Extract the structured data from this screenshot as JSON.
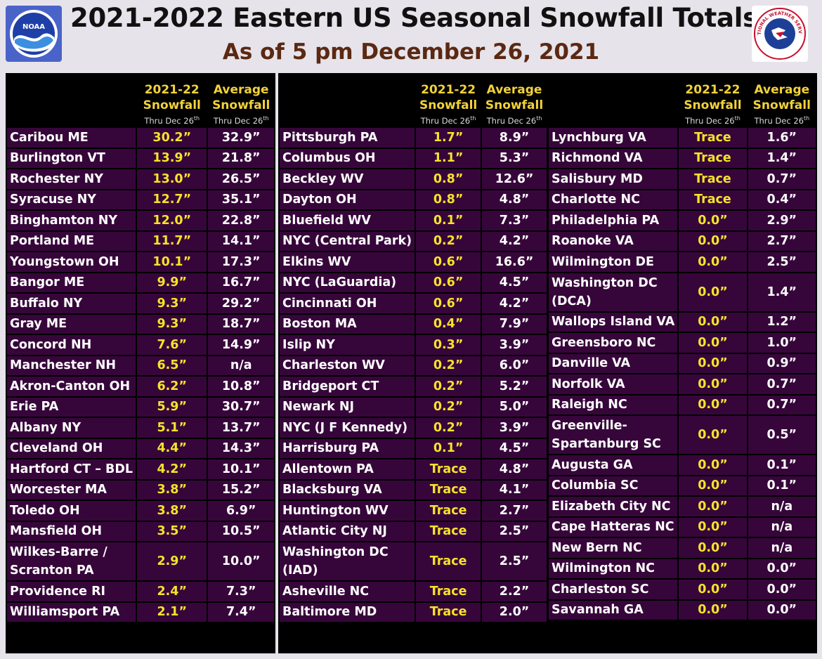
{
  "title": "2021-2022 Eastern US Seasonal Snowfall Totals",
  "subtitle": "As of 5 pm December 26, 2021",
  "logos": {
    "left": "NOAA",
    "right": "NATIONAL WEATHER SERVICE"
  },
  "header": {
    "line1_a": "2021-22",
    "line1_b": "Average",
    "line2": "Snowfall",
    "line3": "Thru Dec 26",
    "line3_sup": "th"
  },
  "columns": [
    {
      "rows": [
        {
          "city": "Caribou ME",
          "snow": "30.2”",
          "avg": "32.9”"
        },
        {
          "city": "Burlington VT",
          "snow": "13.9”",
          "avg": "21.8”"
        },
        {
          "city": "Rochester NY",
          "snow": "13.0”",
          "avg": "26.5”"
        },
        {
          "city": "Syracuse NY",
          "snow": "12.7”",
          "avg": "35.1”"
        },
        {
          "city": "Binghamton NY",
          "snow": "12.0”",
          "avg": "22.8”"
        },
        {
          "city": "Portland ME",
          "snow": "11.7”",
          "avg": "14.1”"
        },
        {
          "city": "Youngstown OH",
          "snow": "10.1”",
          "avg": "17.3”"
        },
        {
          "city": "Bangor ME",
          "snow": "9.9”",
          "avg": "16.7”"
        },
        {
          "city": "Buffalo NY",
          "snow": "9.3”",
          "avg": "29.2”"
        },
        {
          "city": "Gray ME",
          "snow": "9.3”",
          "avg": "18.7”"
        },
        {
          "city": "Concord NH",
          "snow": "7.6”",
          "avg": "14.9”"
        },
        {
          "city": "Manchester NH",
          "snow": "6.5”",
          "avg": "n/a"
        },
        {
          "city": "Akron-Canton OH",
          "snow": "6.2”",
          "avg": "10.8”"
        },
        {
          "city": "Erie PA",
          "snow": "5.9”",
          "avg": "30.7”"
        },
        {
          "city": "Albany NY",
          "snow": "5.1”",
          "avg": "13.7”"
        },
        {
          "city": "Cleveland OH",
          "snow": "4.4”",
          "avg": "14.3”"
        },
        {
          "city": "Hartford CT – BDL",
          "snow": "4.2”",
          "avg": "10.1”"
        },
        {
          "city": "Worcester MA",
          "snow": "3.8”",
          "avg": "15.2”"
        },
        {
          "city": "Toledo OH",
          "snow": "3.8”",
          "avg": "6.9”"
        },
        {
          "city": "Mansfield OH",
          "snow": "3.5”",
          "avg": "10.5”"
        },
        {
          "city": "Wilkes-Barre / Scranton PA",
          "snow": "2.9”",
          "avg": "10.0”",
          "tall": true
        },
        {
          "city": "Providence RI",
          "snow": "2.4”",
          "avg": "7.3”"
        },
        {
          "city": "Williamsport PA",
          "snow": "2.1”",
          "avg": "7.4”"
        }
      ]
    },
    {
      "rows": [
        {
          "city": "Pittsburgh PA",
          "snow": "1.7”",
          "avg": "8.9”"
        },
        {
          "city": "Columbus OH",
          "snow": "1.1”",
          "avg": "5.3”"
        },
        {
          "city": "Beckley WV",
          "snow": "0.8”",
          "avg": "12.6”"
        },
        {
          "city": "Dayton OH",
          "snow": "0.8”",
          "avg": "4.8”"
        },
        {
          "city": "Bluefield WV",
          "snow": "0.1”",
          "avg": "7.3”"
        },
        {
          "city": "NYC (Central Park)",
          "snow": "0.2”",
          "avg": "4.2”"
        },
        {
          "city": "Elkins WV",
          "snow": "0.6”",
          "avg": "16.6”"
        },
        {
          "city": "NYC (LaGuardia)",
          "snow": "0.6”",
          "avg": "4.5”"
        },
        {
          "city": "Cincinnati OH",
          "snow": "0.6”",
          "avg": "4.2”"
        },
        {
          "city": "Boston MA",
          "snow": "0.4”",
          "avg": "7.9”"
        },
        {
          "city": "Islip NY",
          "snow": "0.3”",
          "avg": "3.9”"
        },
        {
          "city": "Charleston WV",
          "snow": "0.2”",
          "avg": "6.0”"
        },
        {
          "city": "Bridgeport CT",
          "snow": "0.2”",
          "avg": "5.2”"
        },
        {
          "city": "Newark NJ",
          "snow": "0.2”",
          "avg": "5.0”"
        },
        {
          "city": "NYC (J F Kennedy)",
          "snow": "0.2”",
          "avg": "3.9”"
        },
        {
          "city": "Harrisburg PA",
          "snow": "0.1”",
          "avg": "4.5”"
        },
        {
          "city": "Allentown PA",
          "snow": "Trace",
          "avg": "4.8”"
        },
        {
          "city": "Blacksburg VA",
          "snow": "Trace",
          "avg": "4.1”"
        },
        {
          "city": "Huntington WV",
          "snow": "Trace",
          "avg": "2.7”"
        },
        {
          "city": "Atlantic City NJ",
          "snow": "Trace",
          "avg": "2.5”"
        },
        {
          "city": "Washington DC (IAD)",
          "snow": "Trace",
          "avg": "2.5”",
          "tall": true
        },
        {
          "city": "Asheville NC",
          "snow": "Trace",
          "avg": "2.2”"
        },
        {
          "city": "Baltimore MD",
          "snow": "Trace",
          "avg": "2.0”"
        }
      ]
    },
    {
      "rows": [
        {
          "city": "Lynchburg VA",
          "snow": "Trace",
          "avg": "1.6”"
        },
        {
          "city": "Richmond VA",
          "snow": "Trace",
          "avg": "1.4”"
        },
        {
          "city": "Salisbury MD",
          "snow": "Trace",
          "avg": "0.7”"
        },
        {
          "city": "Charlotte NC",
          "snow": "Trace",
          "avg": "0.4”"
        },
        {
          "city": "Philadelphia PA",
          "snow": "0.0”",
          "avg": "2.9”"
        },
        {
          "city": "Roanoke VA",
          "snow": "0.0”",
          "avg": "2.7”"
        },
        {
          "city": "Wilmington DE",
          "snow": "0.0”",
          "avg": "2.5”"
        },
        {
          "city": "Washington DC (DCA)",
          "snow": "0.0”",
          "avg": "1.4”",
          "tall": true
        },
        {
          "city": "Wallops Island VA",
          "snow": "0.0”",
          "avg": "1.2”"
        },
        {
          "city": "Greensboro NC",
          "snow": "0.0”",
          "avg": "1.0”"
        },
        {
          "city": "Danville VA",
          "snow": "0.0”",
          "avg": "0.9”"
        },
        {
          "city": "Norfolk VA",
          "snow": "0.0”",
          "avg": "0.7”"
        },
        {
          "city": "Raleigh NC",
          "snow": "0.0”",
          "avg": "0.7”"
        },
        {
          "city": "Greenville-Spartanburg SC",
          "snow": "0.0”",
          "avg": "0.5”",
          "tall": true
        },
        {
          "city": "Augusta GA",
          "snow": "0.0”",
          "avg": "0.1”"
        },
        {
          "city": "Columbia SC",
          "snow": "0.0”",
          "avg": "0.1”"
        },
        {
          "city": "Elizabeth City NC",
          "snow": "0.0”",
          "avg": "n/a"
        },
        {
          "city": "Cape Hatteras NC",
          "snow": "0.0”",
          "avg": "n/a"
        },
        {
          "city": "New Bern NC",
          "snow": "0.0”",
          "avg": "n/a"
        },
        {
          "city": "Wilmington NC",
          "snow": "0.0”",
          "avg": "0.0”"
        },
        {
          "city": "Charleston SC",
          "snow": "0.0”",
          "avg": "0.0”"
        },
        {
          "city": "Savannah GA",
          "snow": "0.0”",
          "avg": "0.0”"
        }
      ]
    }
  ]
}
